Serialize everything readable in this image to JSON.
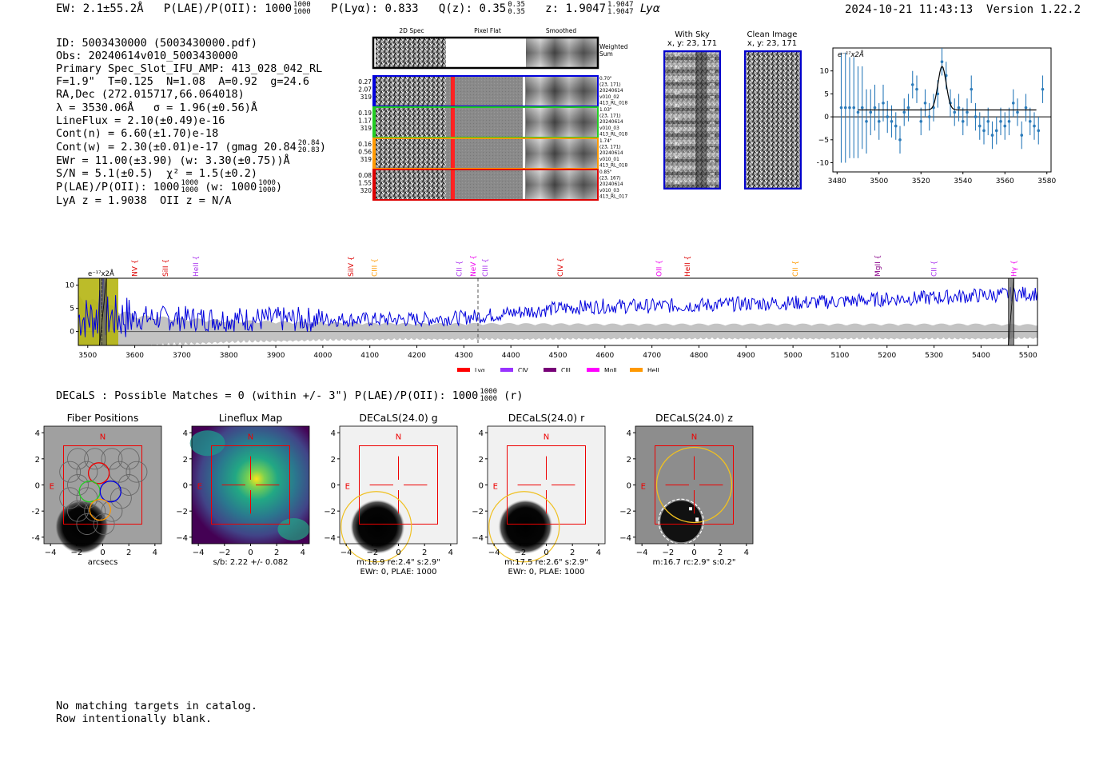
{
  "header": {
    "ew": "EW: 2.1±55.2Å",
    "plae_label": "P(LAE)/P(OII): 1000",
    "plae_hi": "1000",
    "plae_lo": "1000",
    "plya": "P(Lyα): 0.833",
    "qz_label": "Q(z): 0.35",
    "qz_hi": "0.35",
    "qz_lo": "0.35",
    "z_label": "z: 1.9047",
    "z_hi": "1.9047",
    "z_lo": "1.9047",
    "z_line": "Lyα",
    "timestamp": "2024-10-21 11:43:13",
    "version": "Version 1.22.2"
  },
  "info": {
    "id": "ID: 5003430000 (5003430000.pdf)",
    "obs": "Obs: 20240614v010_5003430000",
    "primary": "Primary Spec_Slot_IFU_AMP: 413_028_042_RL",
    "fwhm": "F=1.9\"  T=0.125  N=1.08  A=0.92  g=24.6",
    "radec": "RA,Dec (272.015717,66.064018)",
    "lambda": "λ = 3530.06Å   σ = 1.96(±0.56)Å",
    "lineflux": "LineFlux = 2.10(±0.49)e-16",
    "contn": "Cont(n) = 6.60(±1.70)e-18",
    "contw": "Cont(w) = 2.30(±0.01)e-17 (gmag 20.84",
    "contw_hi": "20.84",
    "contw_lo": "20.83",
    "contw_end": ")",
    "ewr": "EWr = 11.00(±3.90) (w: 3.30(±0.75))Å",
    "sn": "S/N = 5.1(±0.5)  χ² = 1.5(±0.2)",
    "plae": "P(LAE)/P(OII): 1000",
    "plae_hi": "1000",
    "plae_lo": "1000",
    "plae_w": " (w: 1000",
    "plae_w_hi": "1000",
    "plae_w_lo": "1000",
    "plae_w_end": ")",
    "lya": "LyA z = 1.9038  OII z = N/A"
  },
  "cutouts": {
    "col_headers": [
      "2D Spec",
      "Pixel Flat",
      "Smoothed"
    ],
    "weighted_sum": [
      "Weighted",
      "Sum"
    ],
    "rows": [
      {
        "color": "#0000dd",
        "left": [
          "0.27",
          "2.07",
          "319"
        ],
        "right": [
          "0.70\"",
          "(23, 171)",
          "20240614",
          "v010_02",
          "413_RL_018"
        ]
      },
      {
        "color": "#22cc22",
        "left": [
          "0.19",
          "1.17",
          "319"
        ],
        "right": [
          "1.03\"",
          "(23, 171)",
          "20240614",
          "v010_03",
          "413_RL_018"
        ]
      },
      {
        "color": "#ff9900",
        "left": [
          "0.16",
          "0.56",
          "319"
        ],
        "right": [
          "1.74\"",
          "(23, 171)",
          "20240614",
          "v010_01",
          "413_RL_018"
        ]
      },
      {
        "color": "#dd0000",
        "left": [
          "0.08",
          "1.55",
          "320"
        ],
        "right": [
          "0.85\"",
          "(23, 167)",
          "20240614",
          "v010_03",
          "413_RL_017"
        ]
      }
    ],
    "with_sky_title": "With Sky",
    "with_sky_sub": "x, y: 23, 171",
    "clean_title": "Clean Image",
    "clean_sub": "x, y: 23, 171"
  },
  "chart_data": [
    {
      "type": "scatter",
      "name": "zoom-line-fit",
      "scale_label": "e⁻¹⁷x2Å",
      "xlim": [
        3478,
        3582
      ],
      "ylim": [
        -12,
        15
      ],
      "xticks": [
        3480,
        3500,
        3520,
        3540,
        3560,
        3580
      ],
      "yticks": [
        -10,
        -5,
        0,
        5,
        10
      ],
      "x": [
        3482,
        3484,
        3486,
        3488,
        3490,
        3492,
        3494,
        3496,
        3498,
        3500,
        3502,
        3504,
        3506,
        3508,
        3510,
        3512,
        3514,
        3516,
        3518,
        3520,
        3522,
        3524,
        3526,
        3528,
        3530,
        3532,
        3534,
        3536,
        3538,
        3540,
        3542,
        3544,
        3546,
        3548,
        3550,
        3552,
        3554,
        3556,
        3558,
        3560,
        3562,
        3564,
        3566,
        3568,
        3570,
        3572,
        3574,
        3576,
        3578
      ],
      "y": [
        2,
        2,
        2,
        2,
        1,
        2,
        -1,
        1,
        2,
        -1,
        3,
        0,
        -1,
        -2,
        -5,
        1,
        2,
        7,
        6,
        -1,
        3,
        0,
        2,
        5,
        12,
        9,
        3,
        1,
        2,
        -1,
        1,
        6,
        0,
        -2,
        -3,
        -1,
        -4,
        -3,
        -1,
        -2,
        -1,
        3,
        1,
        -4,
        2,
        -1,
        -2,
        -3,
        6
      ],
      "yerr": [
        12,
        12,
        11,
        11,
        10,
        9,
        7,
        5,
        5,
        4,
        4,
        3.5,
        3.5,
        3,
        3,
        3,
        3,
        3,
        3,
        3,
        3,
        3,
        3,
        3,
        3,
        3,
        3,
        3,
        3,
        3,
        3,
        3,
        3,
        3,
        3,
        3,
        3,
        3,
        3,
        3,
        3,
        3,
        3,
        3,
        3,
        3,
        3,
        3,
        3
      ],
      "fit_center": 3530.06,
      "fit_sigma": 1.96,
      "fit_amp": 9.5,
      "fit_base": 1.5
    },
    {
      "type": "line",
      "name": "full-spectrum",
      "scale_label": "e⁻¹⁷x2Å",
      "xlim": [
        3480,
        5520
      ],
      "ylim": [
        -3,
        11.5
      ],
      "xticks": [
        3500,
        3600,
        3700,
        3800,
        3900,
        4000,
        4100,
        4200,
        4300,
        4400,
        4500,
        4600,
        4700,
        4800,
        4900,
        5000,
        5100,
        5200,
        5300,
        5400,
        5500
      ],
      "yticks": [
        0,
        5,
        10
      ],
      "dashed_line_x": 4330,
      "lines": [
        {
          "label": "NV",
          "x": 3600,
          "color": "#dd0000"
        },
        {
          "label": "SiII",
          "x": 3665,
          "color": "#dd0000"
        },
        {
          "label": "HeII",
          "x": 3730,
          "color": "#aa33ee"
        },
        {
          "label": "SiIV",
          "x": 4060,
          "color": "#dd0000"
        },
        {
          "label": "CIII",
          "x": 4110,
          "color": "#ff9900"
        },
        {
          "label": "CII",
          "x": 4290,
          "color": "#aa33ee"
        },
        {
          "label": "NeV",
          "x": 4320,
          "color": "#ee00ee"
        },
        {
          "label": "CIII",
          "x": 4345,
          "color": "#aa33ee"
        },
        {
          "label": "CIV",
          "x": 4505,
          "color": "#dd0000"
        },
        {
          "label": "OII",
          "x": 4715,
          "color": "#ee00ee"
        },
        {
          "label": "HeII",
          "x": 4775,
          "color": "#dd0000"
        },
        {
          "label": "CII",
          "x": 5005,
          "color": "#ff9900"
        },
        {
          "label": "MgII",
          "x": 5180,
          "color": "#880088"
        },
        {
          "label": "CII",
          "x": 5300,
          "color": "#aa33ee"
        },
        {
          "label": "Hγ",
          "x": 5470,
          "color": "#ee00ee"
        }
      ],
      "legend": [
        {
          "label": "Lyα",
          "color": "#ff0000"
        },
        {
          "label": "CIV",
          "color": "#9933ff"
        },
        {
          "label": "CIII",
          "color": "#770077"
        },
        {
          "label": "MgII",
          "color": "#ff00ff"
        },
        {
          "label": "HeII",
          "color": "#ff9900"
        }
      ],
      "legend_placement": "bottom-center",
      "highlight_band": [
        3480,
        3565
      ],
      "hatch_bands": [
        [
          3525,
          3540
        ],
        [
          5458,
          5470
        ]
      ],
      "continuum_knots": {
        "x": [
          3480,
          3600,
          3700,
          3800,
          3900,
          4000,
          4100,
          4200,
          4300,
          4400,
          4500,
          4600,
          4700,
          4800,
          4900,
          5000,
          5100,
          5200,
          5300,
          5400,
          5500
        ],
        "y": [
          3,
          3,
          2.8,
          2.7,
          2.6,
          2.6,
          2.6,
          2.6,
          3.0,
          4.0,
          5.0,
          5.5,
          5.5,
          5.7,
          6.0,
          6.2,
          6.5,
          7.0,
          7.3,
          7.8,
          8.2
        ]
      },
      "noise_knots": {
        "x": [
          3480,
          3550,
          3600,
          3700,
          3800,
          3900,
          4000,
          4200,
          4400,
          4600,
          4800,
          5000,
          5200,
          5400,
          5500
        ],
        "y": [
          7,
          5,
          3.2,
          2.6,
          2.2,
          2.0,
          1.8,
          1.6,
          1.6,
          1.5,
          1.5,
          1.5,
          1.5,
          1.5,
          1.4
        ]
      },
      "lya_line_x": 3530
    }
  ],
  "matches_text": "DECaLS : Possible Matches = 0 (within +/- 3\")  P(LAE)/P(OII): 1000",
  "matches_hi": "1000",
  "matches_lo": "1000",
  "matches_end": "(r)",
  "panels": [
    {
      "title": "Fiber Positions",
      "caption": [
        "arcsecs"
      ]
    },
    {
      "title": "Lineflux Map",
      "caption": [
        "s/b: 2.22 +/- 0.082"
      ]
    },
    {
      "title": "DECaLS(24.0) g",
      "caption": [
        "m:18.9  re:2.4\"  s:2.9\"",
        "EWr: 0, PLAE: 1000"
      ]
    },
    {
      "title": "DECaLS(24.0) r",
      "caption": [
        "m:17.5  re:2.6\"  s:2.9\"",
        "EWr: 0, PLAE: 1000"
      ]
    },
    {
      "title": "DECaLS(24.0) z",
      "caption": [
        "m:16.7 rc:2.9\"  s:0.2\""
      ]
    }
  ],
  "panel_axes": {
    "ticks": [
      -4,
      -2,
      0,
      2,
      4
    ],
    "north": "N",
    "east": "E"
  },
  "footer": [
    "No matching targets in catalog.",
    "Row intentionally blank."
  ]
}
